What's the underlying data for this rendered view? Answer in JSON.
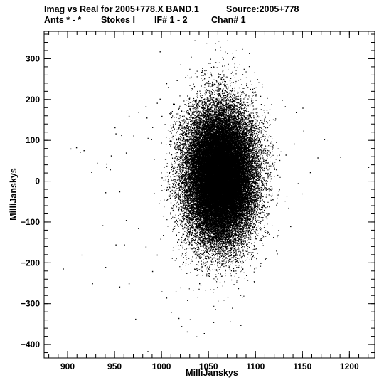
{
  "chart_data": {
    "type": "scatter",
    "title": "Imag vs Real for 2005+778.X BAND.1",
    "source": "Source:2005+778",
    "subtitle": {
      "ants": "Ants * - *",
      "stokes": "Stokes I",
      "if": "IF# 1 - 2",
      "chan": "Chan# 1"
    },
    "xlabel": "MilliJanskys",
    "ylabel": "MilliJanskys",
    "xlim": [
      875,
      1227
    ],
    "ylim": [
      -433,
      367
    ],
    "xticks": [
      {
        "value": 900,
        "label": "900"
      },
      {
        "value": 950,
        "label": "950"
      },
      {
        "value": 1000,
        "label": "1000"
      },
      {
        "value": 1050,
        "label": "1050"
      },
      {
        "value": 1100,
        "label": "1100"
      },
      {
        "value": 1150,
        "label": "1150"
      },
      {
        "value": 1200,
        "label": "1200"
      }
    ],
    "yticks": [
      {
        "value": 300,
        "label": "300"
      },
      {
        "value": 200,
        "label": "200"
      },
      {
        "value": 100,
        "label": "100"
      },
      {
        "value": 0,
        "label": "0"
      },
      {
        "value": -100,
        "label": "−100"
      },
      {
        "value": -200,
        "label": "−200"
      },
      {
        "value": -300,
        "label": "−300"
      },
      {
        "value": -400,
        "label": "−400"
      }
    ],
    "xminor_step": 10,
    "yminor_step": 20,
    "grid": false,
    "series": [
      {
        "color": "#000000",
        "marker": "dot",
        "cloud": {
          "center": [
            1062,
            15
          ],
          "spread_sd": [
            18,
            80
          ],
          "count": 45000
        },
        "points": [
          [
            1220,
            35
          ],
          [
            1190,
            60
          ],
          [
            1173,
            103
          ],
          [
            1151,
            124
          ],
          [
            1143,
            169
          ],
          [
            1141,
            92
          ],
          [
            1150,
            180
          ],
          [
            1128,
            199
          ],
          [
            1062,
            329
          ],
          [
            1057,
            323
          ],
          [
            1035,
            345
          ],
          [
            1050,
            290
          ],
          [
            1075,
            300
          ],
          [
            1090,
            235
          ],
          [
            1100,
            210
          ],
          [
            1135,
            -65
          ],
          [
            1149,
            -30
          ],
          [
            1137,
            -110
          ],
          [
            1122,
            -170
          ],
          [
            1110,
            -190
          ],
          [
            1090,
            -230
          ],
          [
            1084,
            -352
          ],
          [
            1075,
            -310
          ],
          [
            1055,
            -345
          ],
          [
            1045,
            -372
          ],
          [
            1037,
            -380
          ],
          [
            1027,
            -368
          ],
          [
            1021,
            -355
          ],
          [
            1018,
            -335
          ],
          [
            1030,
            -338
          ],
          [
            1010,
            -320
          ],
          [
            1000,
            -270
          ],
          [
            1005,
            -285
          ],
          [
            1015,
            -270
          ],
          [
            1020,
            -260
          ],
          [
            1040,
            -250
          ],
          [
            1050,
            -225
          ],
          [
            1066,
            -290
          ],
          [
            985,
            -416
          ],
          [
            972,
            -337
          ],
          [
            990,
            -220
          ],
          [
            995,
            -180
          ],
          [
            983,
            -160
          ],
          [
            975,
            -115
          ],
          [
            962,
            -95
          ],
          [
            955,
            -25
          ],
          [
            960,
            -155
          ],
          [
            955,
            -258
          ],
          [
            965,
            -250
          ],
          [
            951,
            -155
          ],
          [
            940,
            -210
          ],
          [
            937,
            -108
          ],
          [
            926,
            -250
          ],
          [
            915,
            -180
          ],
          [
            895,
            -214
          ],
          [
            913,
            72
          ],
          [
            917,
            76
          ],
          [
            909,
            83
          ],
          [
            903,
            80
          ],
          [
            925,
            23
          ],
          [
            941,
            43
          ],
          [
            945,
            29
          ],
          [
            941,
            35
          ],
          [
            946,
            63
          ],
          [
            951,
            117
          ],
          [
            950,
            132
          ],
          [
            962,
            70
          ],
          [
            957,
            113
          ],
          [
            970,
            112
          ],
          [
            965,
            160
          ],
          [
            975,
            170
          ],
          [
            984,
            156
          ],
          [
            983,
            184
          ],
          [
            995,
            192
          ],
          [
            998,
            318
          ],
          [
            998,
            202
          ],
          [
            1000,
            160
          ],
          [
            1012,
            190
          ],
          [
            1016,
            248
          ],
          [
            1025,
            255
          ],
          [
            1020,
            286
          ],
          [
            1031,
            305
          ],
          [
            1043,
            271
          ],
          [
            1044,
            260
          ],
          [
            1050,
            240
          ],
          [
            1028,
            115
          ],
          [
            1020,
            80
          ],
          [
            1025,
            20
          ],
          [
            1018,
            -40
          ],
          [
            1022,
            -90
          ],
          [
            1030,
            -150
          ],
          [
            1105,
            150
          ],
          [
            1110,
            110
          ],
          [
            1115,
            60
          ],
          [
            1112,
            0
          ],
          [
            1108,
            -60
          ],
          [
            1100,
            -140
          ],
          [
            1120,
            30
          ],
          [
            1125,
            -20
          ],
          [
            1132,
            65
          ],
          [
            940,
            -27
          ],
          [
            931,
            45
          ],
          [
            1166,
            58
          ],
          [
            1158,
            22
          ],
          [
            1145,
            -5
          ],
          [
            1005,
            240
          ],
          [
            1070,
            345
          ]
        ]
      }
    ]
  }
}
